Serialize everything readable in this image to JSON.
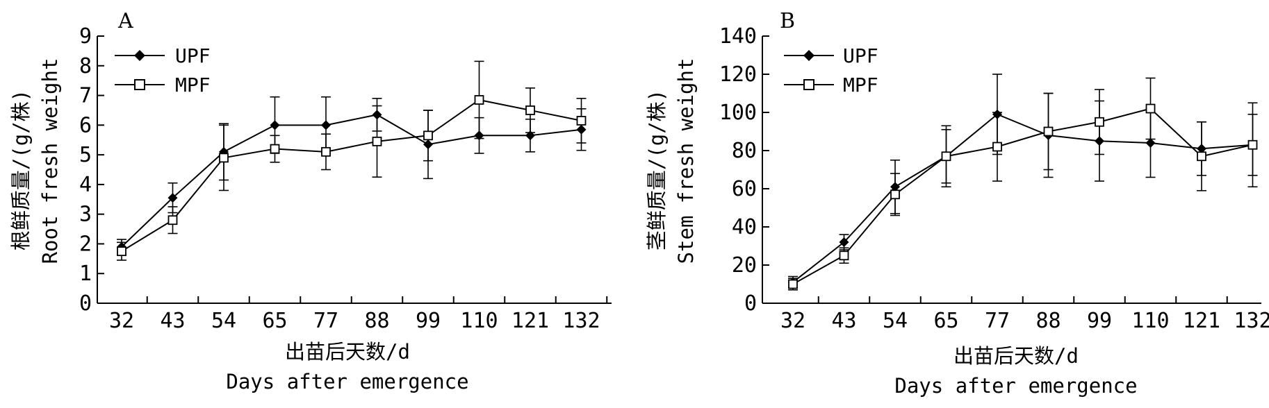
{
  "chart_data": [
    {
      "type": "line",
      "panel_label": "A",
      "categories": [
        "32",
        "43",
        "54",
        "65",
        "77",
        "88",
        "99",
        "110",
        "121",
        "132"
      ],
      "ylim": [
        0,
        9
      ],
      "yticks": [
        "0",
        "1",
        "2",
        "3",
        "4",
        "5",
        "6",
        "7",
        "8",
        "9"
      ],
      "ylabel_cn": "根鲜质量/(g/株)",
      "ylabel_en": "Root fresh weight",
      "xlabel_cn": "出苗后天数/d",
      "xlabel_en": "Days after emergence",
      "legend": "top-left",
      "series": [
        {
          "name": "UPF",
          "marker": "filled-diamond",
          "values": [
            1.9,
            3.55,
            5.1,
            6.0,
            6.0,
            6.35,
            5.35,
            5.65,
            5.65,
            5.85
          ],
          "errors": [
            0.25,
            0.5,
            0.95,
            0.95,
            0.95,
            0.55,
            1.15,
            0.6,
            0.55,
            0.7
          ]
        },
        {
          "name": "MPF",
          "marker": "open-square",
          "values": [
            1.75,
            2.8,
            4.9,
            5.2,
            5.1,
            5.45,
            5.65,
            6.85,
            6.5,
            6.15
          ],
          "errors": [
            0.3,
            0.45,
            1.1,
            0.45,
            0.6,
            1.2,
            0.85,
            1.3,
            0.75,
            0.75
          ]
        }
      ]
    },
    {
      "type": "line",
      "panel_label": "B",
      "categories": [
        "32",
        "43",
        "54",
        "65",
        "77",
        "88",
        "99",
        "110",
        "121",
        "132"
      ],
      "ylim": [
        0,
        140
      ],
      "yticks": [
        "0",
        "20",
        "40",
        "60",
        "80",
        "100",
        "120",
        "140"
      ],
      "ylabel_cn": "茎鲜质量/(g/株)",
      "ylabel_en": "Stem fresh weight",
      "xlabel_cn": "出苗后天数/d",
      "xlabel_en": "Days after emergence",
      "legend": "top-left",
      "series": [
        {
          "name": "UPF",
          "marker": "filled-diamond",
          "values": [
            11,
            32,
            61,
            77,
            99,
            88,
            85,
            84,
            81,
            83
          ],
          "errors": [
            3,
            4,
            14,
            14,
            21,
            22,
            21,
            18,
            14,
            16
          ]
        },
        {
          "name": "MPF",
          "marker": "open-square",
          "values": [
            10,
            25,
            57,
            77,
            82,
            90,
            95,
            102,
            77,
            83
          ],
          "errors": [
            3,
            4,
            11,
            16,
            18,
            20,
            17,
            16,
            18,
            22
          ]
        }
      ]
    }
  ]
}
